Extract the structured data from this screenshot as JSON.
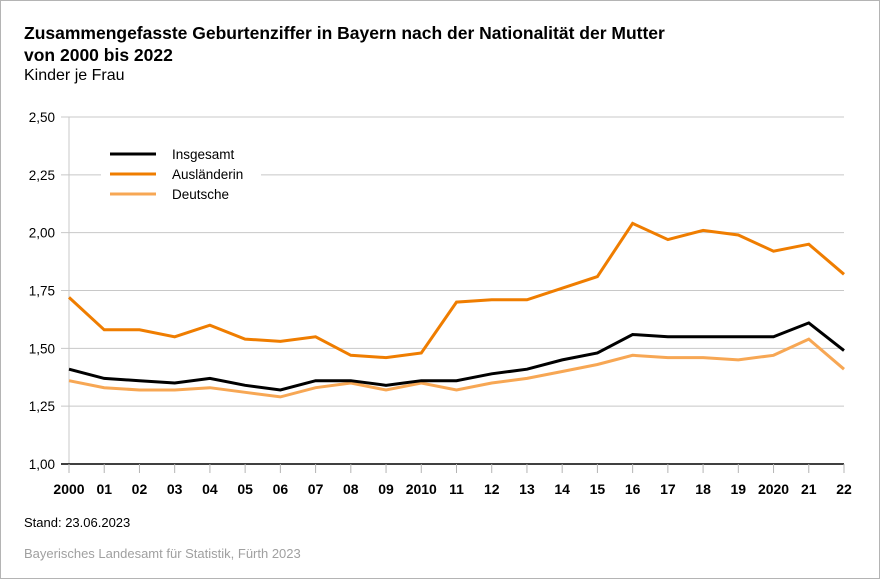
{
  "header": {
    "title_line1": "Zusammengefasste Geburtenziffer in Bayern nach der Nationalität der Mutter",
    "title_line2": "von 2000 bis 2022",
    "subtitle": "Kinder je Frau"
  },
  "footer": {
    "stand": "Stand: 23.06.2023",
    "source": "Bayerisches Landesamt für Statistik, Fürth 2023"
  },
  "chart_data": {
    "type": "line",
    "title": "Zusammengefasste Geburtenziffer in Bayern nach der Nationalität der Mutter von 2000 bis 2022",
    "ylabel": "Kinder je Frau",
    "xlabel": "",
    "ylim": [
      1.0,
      2.5
    ],
    "yticks": [
      1.0,
      1.25,
      1.5,
      1.75,
      2.0,
      2.25,
      2.5
    ],
    "ytick_labels": [
      "1,00",
      "1,25",
      "1,50",
      "1,75",
      "2,00",
      "2,25",
      "2,50"
    ],
    "grid": "horizontal",
    "legend_position": "top-left",
    "x": [
      2000,
      2001,
      2002,
      2003,
      2004,
      2005,
      2006,
      2007,
      2008,
      2009,
      2010,
      2011,
      2012,
      2013,
      2014,
      2015,
      2016,
      2017,
      2018,
      2019,
      2020,
      2021,
      2022
    ],
    "categories": [
      "2000",
      "01",
      "02",
      "03",
      "04",
      "05",
      "06",
      "07",
      "08",
      "09",
      "2010",
      "11",
      "12",
      "13",
      "14",
      "15",
      "16",
      "17",
      "18",
      "19",
      "2020",
      "21",
      "22"
    ],
    "series": [
      {
        "name": "Insgesamt",
        "color": "#000000",
        "values": [
          1.41,
          1.37,
          1.36,
          1.35,
          1.37,
          1.34,
          1.32,
          1.36,
          1.36,
          1.34,
          1.36,
          1.36,
          1.39,
          1.41,
          1.45,
          1.48,
          1.56,
          1.55,
          1.55,
          1.55,
          1.55,
          1.61,
          1.49
        ]
      },
      {
        "name": "Ausländerin",
        "color": "#ef7d00",
        "values": [
          1.72,
          1.58,
          1.58,
          1.55,
          1.6,
          1.54,
          1.53,
          1.55,
          1.47,
          1.46,
          1.48,
          1.7,
          1.71,
          1.71,
          1.76,
          1.81,
          2.04,
          1.97,
          2.01,
          1.99,
          1.92,
          1.95,
          1.82
        ]
      },
      {
        "name": "Deutsche",
        "color": "#f7a754",
        "values": [
          1.36,
          1.33,
          1.32,
          1.32,
          1.33,
          1.31,
          1.29,
          1.33,
          1.35,
          1.32,
          1.35,
          1.32,
          1.35,
          1.37,
          1.4,
          1.43,
          1.47,
          1.46,
          1.46,
          1.45,
          1.47,
          1.54,
          1.41
        ]
      }
    ]
  }
}
